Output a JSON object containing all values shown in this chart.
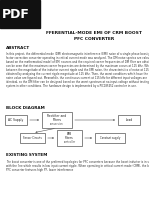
{
  "bg_color": "#ffffff",
  "pdf_badge_bg": "#111111",
  "pdf_badge_text": "PDF",
  "title_line1": "FFERENTIAL-MODE EMI OF CRM BOOST",
  "title_line2": "PFC CONVERTER",
  "abstract_heading": "ABSTRACT",
  "abstract_body": "In this project, the differential mode (DM) electromagnetic interference (EMI) noise of a single-phase boost power factor correction converter operating in critical current mode was analyzed. The DM noise spectra are calculated based on the mathematical model of EMI sources and the required corner frequencies of DM filter are obtained. It can be seen that the maximum corner frequencies are determined by the maximum occurs at 115 kHz. While the relation between the magnitude of the inductor current ripple and the EMI noise, the characteristics of noise at 115 kHz are obtained by analyzing the current ripple magnitude at 115 kHz. Then, the worst conditions which have the maximum noise value are figured out. Meanwhile, the continuous current at 115 kHz for different input voltages are identical, so the DM filter can be designed based on the worst spectrum at no-input-voltage without testing the system in other conditions. The hardware design is implemented by a PIC18F452 controller in use.",
  "block_heading": "BLOCK DIAGRAM",
  "existing_heading": "EXISTING SYSTEM",
  "existing_body": "The boost converter is one of the preferred topologies for PFC converters because the boost inductor is in series with the line which results in low input current ripple. When operating in critical current mode (CRM), the boost PFC converter features high PF, lower interference"
}
